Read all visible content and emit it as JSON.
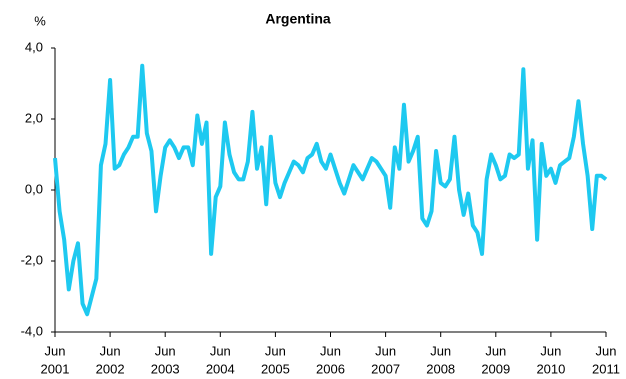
{
  "chart_data": {
    "type": "line",
    "title": "Argentina",
    "y_label": "%",
    "x": [
      "2001-06",
      "2001-07",
      "2001-08",
      "2001-09",
      "2001-10",
      "2001-11",
      "2001-12",
      "2002-01",
      "2002-02",
      "2002-03",
      "2002-04",
      "2002-05",
      "2002-06",
      "2002-07",
      "2002-08",
      "2002-09",
      "2002-10",
      "2002-11",
      "2002-12",
      "2003-01",
      "2003-02",
      "2003-03",
      "2003-04",
      "2003-05",
      "2003-06",
      "2003-07",
      "2003-08",
      "2003-09",
      "2003-10",
      "2003-11",
      "2003-12",
      "2004-01",
      "2004-02",
      "2004-03",
      "2004-04",
      "2004-05",
      "2004-06",
      "2004-07",
      "2004-08",
      "2004-09",
      "2004-10",
      "2004-11",
      "2004-12",
      "2005-01",
      "2005-02",
      "2005-03",
      "2005-04",
      "2005-05",
      "2005-06",
      "2005-07",
      "2005-08",
      "2005-09",
      "2005-10",
      "2005-11",
      "2005-12",
      "2006-01",
      "2006-02",
      "2006-03",
      "2006-04",
      "2006-05",
      "2006-06",
      "2006-07",
      "2006-08",
      "2006-09",
      "2006-10",
      "2006-11",
      "2006-12",
      "2007-01",
      "2007-02",
      "2007-03",
      "2007-04",
      "2007-05",
      "2007-06",
      "2007-07",
      "2007-08",
      "2007-09",
      "2007-10",
      "2007-11",
      "2007-12",
      "2008-01",
      "2008-02",
      "2008-03",
      "2008-04",
      "2008-05",
      "2008-06",
      "2008-07",
      "2008-08",
      "2008-09",
      "2008-10",
      "2008-11",
      "2008-12",
      "2009-01",
      "2009-02",
      "2009-03",
      "2009-04",
      "2009-05",
      "2009-06",
      "2009-07",
      "2009-08",
      "2009-09",
      "2009-10",
      "2009-11",
      "2009-12",
      "2010-01",
      "2010-02",
      "2010-03",
      "2010-04",
      "2010-05",
      "2010-06",
      "2010-07",
      "2010-08",
      "2010-09",
      "2010-10",
      "2010-11",
      "2010-12",
      "2011-01",
      "2011-02",
      "2011-03",
      "2011-04",
      "2011-05",
      "2011-06"
    ],
    "series": [
      {
        "name": "Argentina",
        "color": "#1ec9f0",
        "values": [
          0.9,
          -0.6,
          -1.4,
          -2.8,
          -2.0,
          -1.5,
          -3.2,
          -3.5,
          -3.0,
          -2.5,
          0.7,
          1.3,
          3.1,
          0.6,
          0.7,
          1.0,
          1.2,
          1.5,
          1.5,
          3.5,
          1.6,
          1.1,
          -0.6,
          0.4,
          1.2,
          1.4,
          1.2,
          0.9,
          1.2,
          1.2,
          0.7,
          2.1,
          1.3,
          1.9,
          -1.8,
          -0.2,
          0.1,
          1.9,
          1.0,
          0.5,
          0.3,
          0.3,
          0.8,
          2.2,
          0.6,
          1.2,
          -0.4,
          1.5,
          0.2,
          -0.2,
          0.2,
          0.5,
          0.8,
          0.7,
          0.5,
          0.9,
          1.0,
          1.3,
          0.8,
          0.6,
          1.0,
          0.6,
          0.2,
          -0.1,
          0.3,
          0.7,
          0.5,
          0.3,
          0.6,
          0.9,
          0.8,
          0.6,
          0.4,
          -0.5,
          1.2,
          0.6,
          2.4,
          0.8,
          1.1,
          1.5,
          -0.8,
          -1.0,
          -0.6,
          1.1,
          0.2,
          0.1,
          0.3,
          1.5,
          0.0,
          -0.7,
          -0.1,
          -1.0,
          -1.2,
          -1.8,
          0.3,
          1.0,
          0.7,
          0.3,
          0.4,
          1.0,
          0.9,
          1.0,
          3.4,
          0.6,
          1.4,
          -1.4,
          1.3,
          0.4,
          0.6,
          0.2,
          0.7,
          0.8,
          0.9,
          1.5,
          2.5,
          1.3,
          0.4,
          -1.1,
          0.4,
          0.4,
          0.3
        ]
      }
    ],
    "ylim": [
      -4,
      4
    ],
    "yticks": [
      {
        "value": -4,
        "label": "-4,0"
      },
      {
        "value": -2,
        "label": "-2,0"
      },
      {
        "value": 0,
        "label": "0,0"
      },
      {
        "value": 2,
        "label": "2,0"
      },
      {
        "value": 4,
        "label": "4,0"
      }
    ],
    "xticks": [
      {
        "value": "2001-06",
        "label": [
          "Jun",
          "2001"
        ]
      },
      {
        "value": "2002-06",
        "label": [
          "Jun",
          "2002"
        ]
      },
      {
        "value": "2003-06",
        "label": [
          "Jun",
          "2003"
        ]
      },
      {
        "value": "2004-06",
        "label": [
          "Jun",
          "2004"
        ]
      },
      {
        "value": "2005-06",
        "label": [
          "Jun",
          "2005"
        ]
      },
      {
        "value": "2006-06",
        "label": [
          "Jun",
          "2006"
        ]
      },
      {
        "value": "2007-06",
        "label": [
          "Jun",
          "2007"
        ]
      },
      {
        "value": "2008-06",
        "label": [
          "Jun",
          "2008"
        ]
      },
      {
        "value": "2009-06",
        "label": [
          "Jun",
          "2009"
        ]
      },
      {
        "value": "2010-06",
        "label": [
          "Jun",
          "2010"
        ]
      },
      {
        "value": "2011-06",
        "label": [
          "Jun",
          "2011"
        ]
      }
    ],
    "grid": false
  }
}
